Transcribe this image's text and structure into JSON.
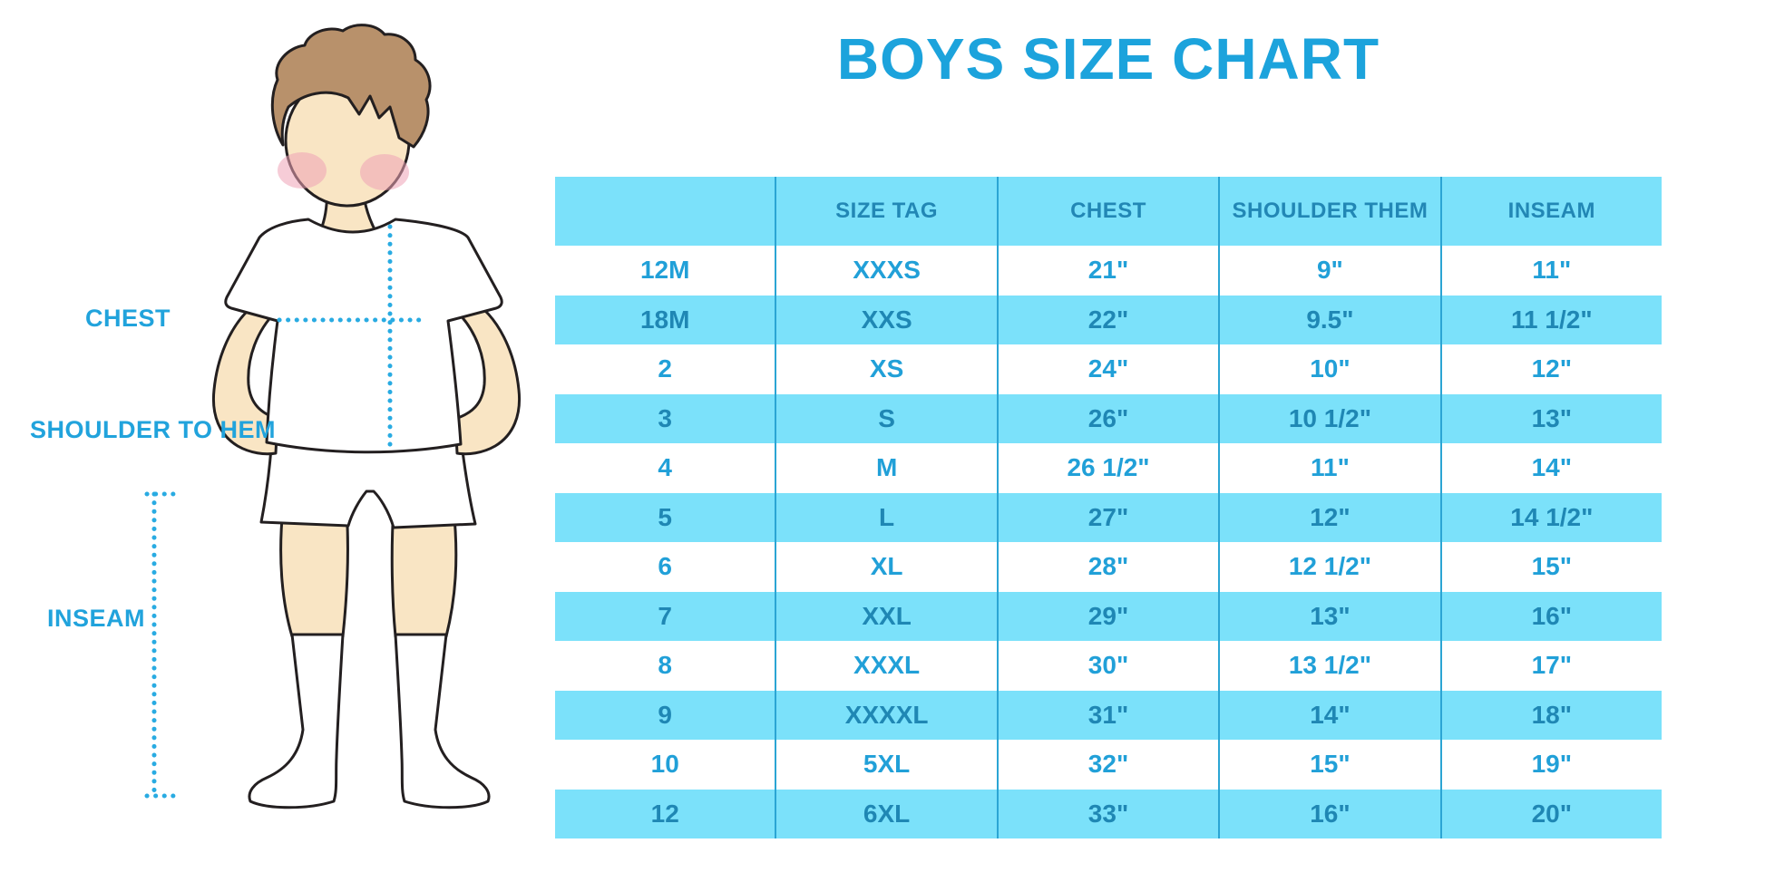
{
  "title": "BOYS SIZE CHART",
  "figure_labels": {
    "chest": "CHEST",
    "shoulder_to_hem": "SHOULDER TO HEM",
    "inseam": "INSEAM"
  },
  "colors": {
    "accent_blue": "#1CA3DC",
    "row_cyan": "#7BE1FA",
    "divider_blue": "#2BA5D4",
    "header_text": "#2287B5",
    "cell_text_on_white": "#21A0D8",
    "cell_text_on_cyan": "#1F87B4",
    "dotted_line": "#29ABE2",
    "skin": "#F9E5C4",
    "hair": "#B8916B",
    "cheek_pink": "#EFA2B6",
    "outline": "#231F20"
  },
  "chart_data": {
    "type": "table",
    "title": "BOYS SIZE CHART",
    "columns": [
      "",
      "SIZE TAG",
      "CHEST",
      "SHOULDER THEM",
      "INSEAM"
    ],
    "rows": [
      [
        "12M",
        "XXXS",
        "21\"",
        "9\"",
        "11\""
      ],
      [
        "18M",
        "XXS",
        "22\"",
        "9.5\"",
        "11 1/2\""
      ],
      [
        "2",
        "XS",
        "24\"",
        "10\"",
        "12\""
      ],
      [
        "3",
        "S",
        "26\"",
        "10 1/2\"",
        "13\""
      ],
      [
        "4",
        "M",
        "26 1/2\"",
        "11\"",
        "14\""
      ],
      [
        "5",
        "L",
        "27\"",
        "12\"",
        "14 1/2\""
      ],
      [
        "6",
        "XL",
        "28\"",
        "12 1/2\"",
        "15\""
      ],
      [
        "7",
        "XXL",
        "29\"",
        "13\"",
        "16\""
      ],
      [
        "8",
        "XXXL",
        "30\"",
        "13 1/2\"",
        "17\""
      ],
      [
        "9",
        "XXXXL",
        "31\"",
        "14\"",
        "18\""
      ],
      [
        "10",
        "5XL",
        "32\"",
        "15\"",
        "19\""
      ],
      [
        "12",
        "6XL",
        "33\"",
        "16\"",
        "20\""
      ]
    ]
  }
}
